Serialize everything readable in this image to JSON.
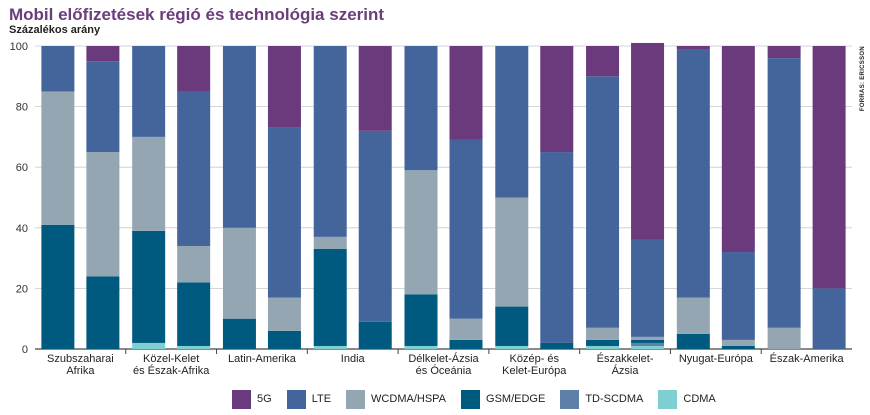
{
  "title": "Mobil előfizetések régió és technológia szerint",
  "subtitle": "Százalékos arány",
  "source": "FORRÁS: ERICSSON",
  "chart_data": {
    "type": "bar",
    "stacked": true,
    "ylim": [
      0,
      100
    ],
    "yticks": [
      0,
      20,
      40,
      60,
      80,
      100
    ],
    "grid": true,
    "legend_position": "bottom",
    "groups": [
      {
        "label": [
          "Szubszaharai",
          "Afrika"
        ],
        "years": [
          0,
          1
        ]
      },
      {
        "label": [
          "Közel-Kelet",
          "és Észak-Afrika"
        ],
        "years": [
          2,
          3
        ]
      },
      {
        "label": [
          "Latin-Amerika"
        ],
        "years": [
          4,
          5
        ]
      },
      {
        "label": [
          "India"
        ],
        "years": [
          6,
          7
        ]
      },
      {
        "label": [
          "Délkelet-Ázsia",
          "és Óceánia"
        ],
        "years": [
          8,
          9
        ]
      },
      {
        "label": [
          "Közép- és",
          "Kelet-Európa"
        ],
        "years": [
          10,
          11
        ]
      },
      {
        "label": [
          "Északkelet-",
          "Ázsia"
        ],
        "years": [
          12,
          13
        ]
      },
      {
        "label": [
          "Nyugat-Európa"
        ],
        "years": [
          14,
          15
        ]
      },
      {
        "label": [
          "Észak-Amerika"
        ],
        "years": [
          16,
          17
        ]
      }
    ],
    "series": [
      {
        "name": "CDMA",
        "color": "#7ecfcf",
        "values": [
          0,
          0,
          2,
          1,
          0,
          0,
          1,
          0,
          1,
          0,
          1,
          0,
          1,
          1,
          0,
          0,
          0,
          0
        ]
      },
      {
        "name": "TD-SCDMA",
        "color": "#5d7fa8",
        "values": [
          0,
          0,
          0,
          0,
          0,
          0,
          0,
          0,
          0,
          0,
          0,
          0,
          0,
          1,
          0,
          0,
          0,
          0
        ]
      },
      {
        "name": "GSM/EDGE",
        "color": "#005a80",
        "values": [
          41,
          24,
          37,
          21,
          10,
          6,
          32,
          9,
          17,
          3,
          13,
          2,
          2,
          1,
          5,
          1,
          0,
          0
        ]
      },
      {
        "name": "WCDMA/HSPA",
        "color": "#94a6b2",
        "values": [
          44,
          41,
          31,
          12,
          30,
          11,
          4,
          0,
          41,
          7,
          36,
          0,
          4,
          1,
          12,
          2,
          7,
          0
        ]
      },
      {
        "name": "LTE",
        "color": "#44659c",
        "values": [
          15,
          30,
          30,
          51,
          60,
          56,
          63,
          63,
          41,
          59,
          50,
          63,
          83,
          32,
          82,
          29,
          89,
          20
        ]
      },
      {
        "name": "5G",
        "color": "#6b3a7d",
        "values": [
          0,
          5,
          0,
          15,
          0,
          27,
          0,
          28,
          0,
          31,
          0,
          35,
          10,
          65,
          1,
          68,
          4,
          80
        ]
      }
    ]
  },
  "legend": [
    {
      "name": "5G",
      "color": "#6b3a7d"
    },
    {
      "name": "LTE",
      "color": "#44659c"
    },
    {
      "name": "WCDMA/HSPA",
      "color": "#94a6b2"
    },
    {
      "name": "GSM/EDGE",
      "color": "#005a80"
    },
    {
      "name": "TD-SCDMA",
      "color": "#5d7fa8"
    },
    {
      "name": "CDMA",
      "color": "#7ecfcf"
    }
  ]
}
